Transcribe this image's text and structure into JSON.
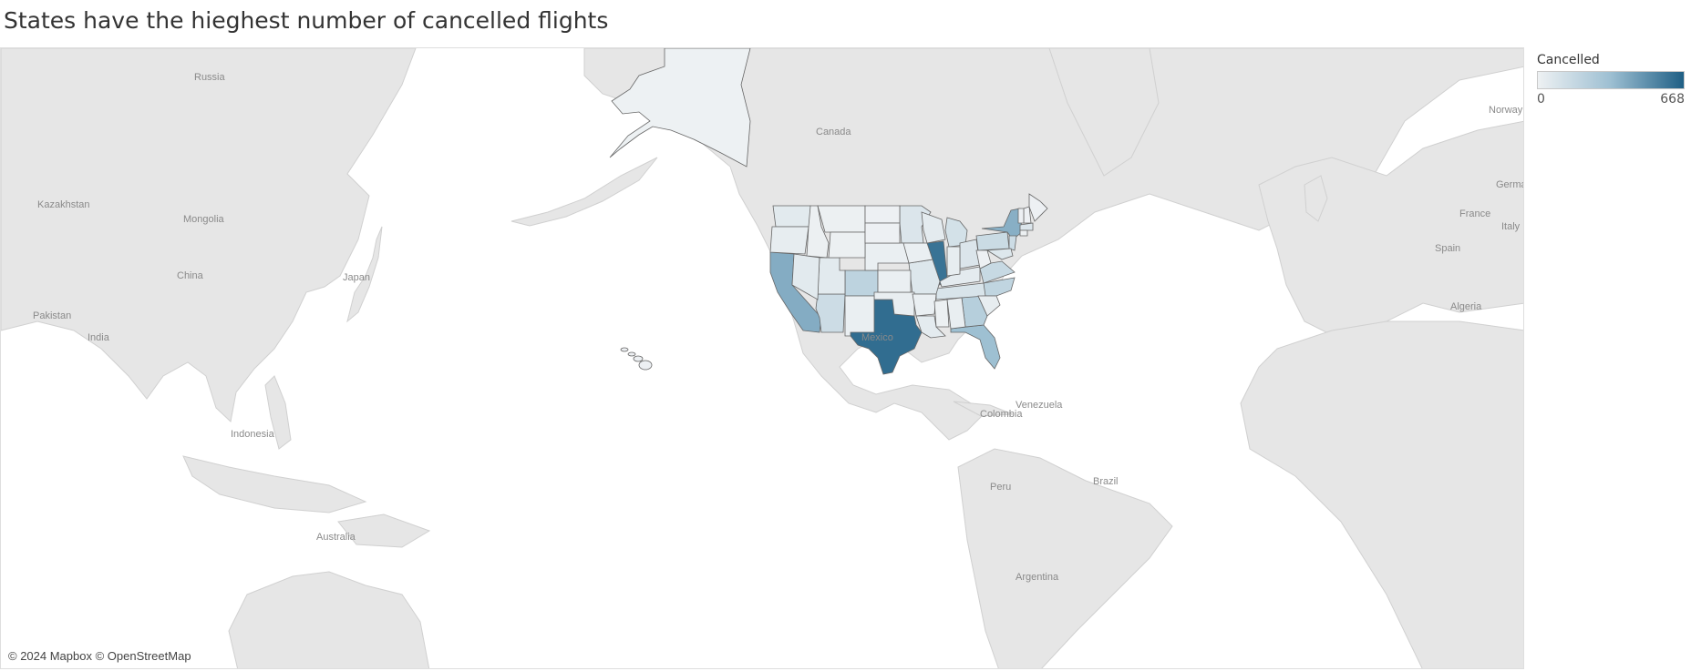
{
  "title": "States have the hieghest number of cancelled flights",
  "legend": {
    "title": "Cancelled",
    "min_label": "0",
    "max_label": "668",
    "color_low": "#eef1f3",
    "color_high": "#1f5f85"
  },
  "map": {
    "attribution": "© 2024 Mapbox © OpenStreetMap",
    "land_color": "#e6e6e6",
    "water_color": "#ffffff",
    "place_labels": {
      "russia": "Russia",
      "kazakhstan": "Kazakhstan",
      "mongolia": "Mongolia",
      "china": "China",
      "japan": "Japan",
      "pakistan": "Pakistan",
      "india": "India",
      "indonesia": "Indonesia",
      "australia": "Australia",
      "canada": "Canada",
      "mexico": "Mexico",
      "colombia": "Colombia",
      "venezuela": "Venezuela",
      "peru": "Peru",
      "brazil": "Brazil",
      "argentina": "Argentina",
      "norway": "Norway",
      "germany": "German",
      "france": "France",
      "italy": "Italy",
      "spain": "Spain",
      "algeria": "Algeria"
    }
  },
  "chart_data": {
    "type": "map",
    "measure": "Cancelled",
    "color_range": [
      0,
      668
    ],
    "regions": [
      {
        "name": "Texas",
        "value": 620
      },
      {
        "name": "Illinois",
        "value": 600
      },
      {
        "name": "California",
        "value": 400
      },
      {
        "name": "New York",
        "value": 390
      },
      {
        "name": "Florida",
        "value": 330
      },
      {
        "name": "Georgia",
        "value": 230
      },
      {
        "name": "Colorado",
        "value": 200
      },
      {
        "name": "North Carolina",
        "value": 190
      },
      {
        "name": "Virginia",
        "value": 160
      },
      {
        "name": "Pennsylvania",
        "value": 150
      },
      {
        "name": "Arizona",
        "value": 140
      },
      {
        "name": "New Jersey",
        "value": 140
      },
      {
        "name": "Michigan",
        "value": 110
      },
      {
        "name": "Tennessee",
        "value": 90
      },
      {
        "name": "Minnesota",
        "value": 80
      },
      {
        "name": "Ohio",
        "value": 80
      },
      {
        "name": "Massachusetts",
        "value": 80
      },
      {
        "name": "Maryland",
        "value": 70
      },
      {
        "name": "Missouri",
        "value": 70
      },
      {
        "name": "Washington",
        "value": 50
      },
      {
        "name": "Utah",
        "value": 50
      },
      {
        "name": "Nevada",
        "value": 50
      },
      {
        "name": "Louisiana",
        "value": 40
      },
      {
        "name": "Kentucky",
        "value": 40
      },
      {
        "name": "Wisconsin",
        "value": 40
      },
      {
        "name": "Oregon",
        "value": 30
      },
      {
        "name": "Indiana",
        "value": 30
      },
      {
        "name": "South Carolina",
        "value": 30
      },
      {
        "name": "Alabama",
        "value": 20
      },
      {
        "name": "Oklahoma",
        "value": 20
      },
      {
        "name": "Nebraska",
        "value": 15
      },
      {
        "name": "Kansas",
        "value": 15
      },
      {
        "name": "Arkansas",
        "value": 15
      },
      {
        "name": "Iowa",
        "value": 15
      },
      {
        "name": "New Mexico",
        "value": 15
      },
      {
        "name": "Mississippi",
        "value": 10
      },
      {
        "name": "Idaho",
        "value": 10
      },
      {
        "name": "Montana",
        "value": 8
      },
      {
        "name": "Wyoming",
        "value": 8
      },
      {
        "name": "North Dakota",
        "value": 5
      },
      {
        "name": "South Dakota",
        "value": 5
      },
      {
        "name": "West Virginia",
        "value": 5
      },
      {
        "name": "Connecticut",
        "value": 10
      },
      {
        "name": "Maine",
        "value": 5
      },
      {
        "name": "New Hampshire",
        "value": 5
      },
      {
        "name": "Vermont",
        "value": 5
      },
      {
        "name": "Alaska",
        "value": 3
      },
      {
        "name": "Hawaii",
        "value": 5
      }
    ]
  }
}
